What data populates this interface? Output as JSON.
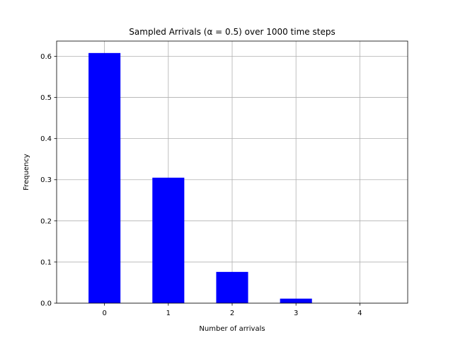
{
  "chart_data": {
    "type": "bar",
    "title": "Sampled Arrivals (α = 0.5) over 1000 time steps",
    "xlabel": "Number of arrivals",
    "ylabel": "Frequency",
    "categories": [
      "0",
      "1",
      "2",
      "3",
      "4"
    ],
    "values": [
      0.608,
      0.305,
      0.076,
      0.011,
      0.0
    ],
    "ylim": [
      0.0,
      0.637
    ],
    "yticks": [
      "0.0",
      "0.1",
      "0.2",
      "0.3",
      "0.4",
      "0.5",
      "0.6"
    ],
    "grid": true,
    "bar_color": "#0000ff",
    "grid_color": "#b0b0b0"
  }
}
